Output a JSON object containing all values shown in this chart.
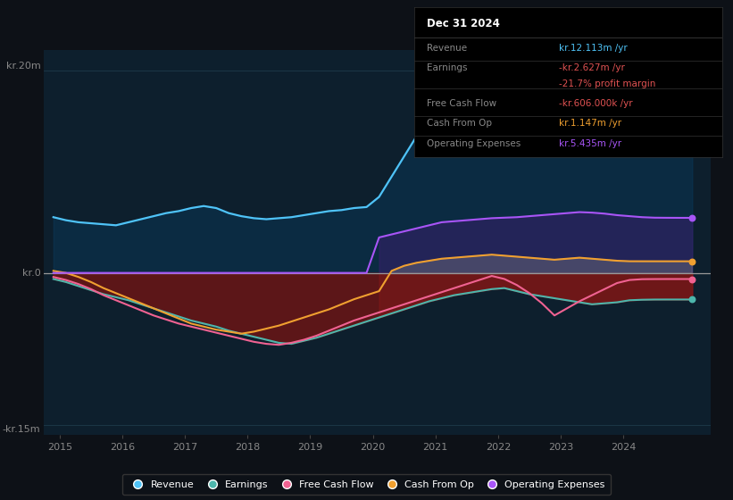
{
  "background_color": "#0d1117",
  "plot_bg_color": "#0d1f2d",
  "info_box_bg": "#000000",
  "xlim": [
    2014.75,
    2025.4
  ],
  "ylim": [
    -16000000,
    22000000
  ],
  "x_ticks": [
    2015,
    2016,
    2017,
    2018,
    2019,
    2020,
    2021,
    2022,
    2023,
    2024
  ],
  "grid_color": "#1e3a4a",
  "zero_line_color": "#999999",
  "info_box": {
    "title": "Dec 31 2024",
    "rows": [
      {
        "label": "Revenue",
        "value": "kr.12.113m /yr",
        "value_color": "#4fc3f7"
      },
      {
        "label": "Earnings",
        "value": "-kr.2.627m /yr",
        "value_color": "#e05252"
      },
      {
        "label": "",
        "value": "-21.7% profit margin",
        "value_color": "#e05252"
      },
      {
        "label": "Free Cash Flow",
        "value": "-kr.606.000k /yr",
        "value_color": "#e05252"
      },
      {
        "label": "Cash From Op",
        "value": "kr.1.147m /yr",
        "value_color": "#f0a030"
      },
      {
        "label": "Operating Expenses",
        "value": "kr.5.435m /yr",
        "value_color": "#a855f7"
      }
    ]
  },
  "legend": [
    {
      "label": "Revenue",
      "color": "#4fc3f7"
    },
    {
      "label": "Earnings",
      "color": "#4db6ac"
    },
    {
      "label": "Free Cash Flow",
      "color": "#f06292"
    },
    {
      "label": "Cash From Op",
      "color": "#f0a030"
    },
    {
      "label": "Operating Expenses",
      "color": "#a855f7"
    }
  ],
  "series": {
    "years": [
      2014.9,
      2015.1,
      2015.3,
      2015.5,
      2015.7,
      2015.9,
      2016.1,
      2016.3,
      2016.5,
      2016.7,
      2016.9,
      2017.1,
      2017.3,
      2017.5,
      2017.7,
      2017.9,
      2018.1,
      2018.3,
      2018.5,
      2018.7,
      2018.9,
      2019.1,
      2019.3,
      2019.5,
      2019.7,
      2019.9,
      2020.1,
      2020.3,
      2020.5,
      2020.7,
      2020.9,
      2021.1,
      2021.3,
      2021.5,
      2021.7,
      2021.9,
      2022.1,
      2022.3,
      2022.5,
      2022.7,
      2022.9,
      2023.1,
      2023.3,
      2023.5,
      2023.7,
      2023.9,
      2024.1,
      2024.3,
      2024.5,
      2024.7,
      2024.9,
      2025.1
    ],
    "revenue": [
      5500000,
      5200000,
      5000000,
      4900000,
      4800000,
      4700000,
      5000000,
      5300000,
      5600000,
      5900000,
      6100000,
      6400000,
      6600000,
      6400000,
      5900000,
      5600000,
      5400000,
      5300000,
      5400000,
      5500000,
      5700000,
      5900000,
      6100000,
      6200000,
      6400000,
      6500000,
      7500000,
      9500000,
      11500000,
      13500000,
      15000000,
      16000000,
      16800000,
      17200000,
      17600000,
      17900000,
      18200000,
      18600000,
      19200000,
      19800000,
      20300000,
      20800000,
      20500000,
      20000000,
      19200000,
      18500000,
      17500000,
      15500000,
      13500000,
      12800000,
      12300000,
      12113000
    ],
    "earnings": [
      -600000,
      -900000,
      -1300000,
      -1700000,
      -2100000,
      -2400000,
      -2700000,
      -3100000,
      -3500000,
      -3900000,
      -4300000,
      -4700000,
      -5000000,
      -5300000,
      -5700000,
      -6000000,
      -6300000,
      -6600000,
      -6900000,
      -7000000,
      -6700000,
      -6400000,
      -6000000,
      -5600000,
      -5200000,
      -4800000,
      -4400000,
      -4000000,
      -3600000,
      -3200000,
      -2800000,
      -2500000,
      -2200000,
      -2000000,
      -1800000,
      -1600000,
      -1500000,
      -1800000,
      -2100000,
      -2300000,
      -2500000,
      -2700000,
      -2900000,
      -3100000,
      -3000000,
      -2900000,
      -2700000,
      -2650000,
      -2630000,
      -2627000,
      -2627000,
      -2627000
    ],
    "free_cash_flow": [
      -400000,
      -700000,
      -1100000,
      -1600000,
      -2200000,
      -2700000,
      -3200000,
      -3700000,
      -4200000,
      -4600000,
      -5000000,
      -5300000,
      -5600000,
      -5900000,
      -6200000,
      -6500000,
      -6800000,
      -7000000,
      -7100000,
      -6900000,
      -6600000,
      -6200000,
      -5700000,
      -5200000,
      -4700000,
      -4300000,
      -3900000,
      -3500000,
      -3100000,
      -2700000,
      -2300000,
      -1900000,
      -1500000,
      -1100000,
      -700000,
      -300000,
      -600000,
      -1200000,
      -2000000,
      -3000000,
      -4200000,
      -3500000,
      -2800000,
      -2200000,
      -1600000,
      -1000000,
      -700000,
      -620000,
      -610000,
      -606000,
      -606000,
      -606000
    ],
    "cash_from_op": [
      200000,
      0,
      -400000,
      -900000,
      -1500000,
      -2000000,
      -2500000,
      -3000000,
      -3500000,
      -4000000,
      -4500000,
      -5000000,
      -5300000,
      -5600000,
      -5800000,
      -6000000,
      -5800000,
      -5500000,
      -5200000,
      -4800000,
      -4400000,
      -4000000,
      -3600000,
      -3100000,
      -2600000,
      -2200000,
      -1800000,
      200000,
      700000,
      1000000,
      1200000,
      1400000,
      1500000,
      1600000,
      1700000,
      1800000,
      1700000,
      1600000,
      1500000,
      1400000,
      1300000,
      1400000,
      1500000,
      1400000,
      1300000,
      1200000,
      1150000,
      1148000,
      1147000,
      1147000,
      1147000,
      1147000
    ],
    "operating_expenses": [
      0,
      0,
      0,
      0,
      0,
      0,
      0,
      0,
      0,
      0,
      0,
      0,
      0,
      0,
      0,
      0,
      0,
      0,
      0,
      0,
      0,
      0,
      0,
      0,
      0,
      0,
      3500000,
      3800000,
      4100000,
      4400000,
      4700000,
      5000000,
      5100000,
      5200000,
      5300000,
      5400000,
      5450000,
      5500000,
      5600000,
      5700000,
      5800000,
      5900000,
      6000000,
      5950000,
      5850000,
      5700000,
      5600000,
      5500000,
      5450000,
      5440000,
      5435000,
      5435000
    ]
  }
}
